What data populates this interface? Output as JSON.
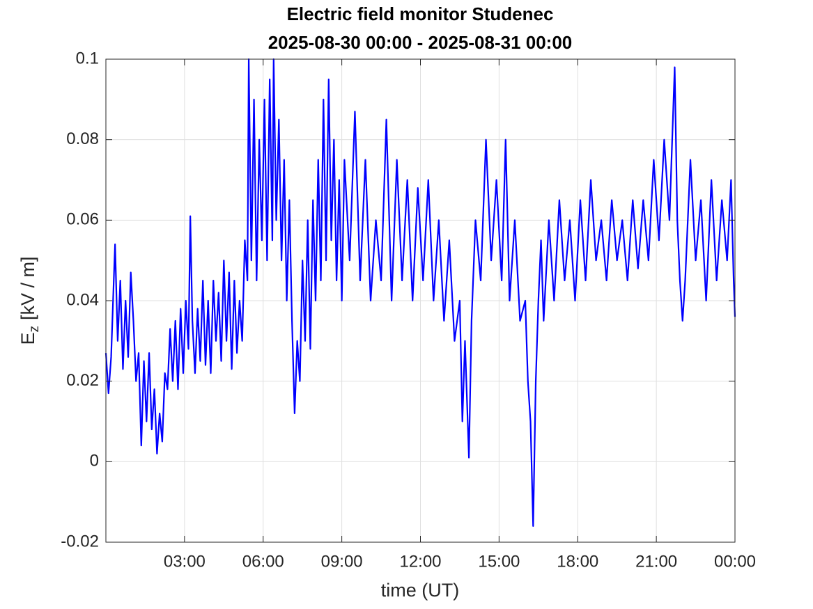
{
  "chart_data": {
    "type": "line",
    "title": "Electric field monitor Studenec",
    "subtitle": "2025-08-30 00:00 - 2025-08-31 00:00",
    "xlabel": "time (UT)",
    "ylabel": {
      "main": "E",
      "sub": "z",
      "unit": "[kV / m]"
    },
    "xlim": [
      0,
      24
    ],
    "xticks": [
      {
        "value": 3,
        "label": "03:00"
      },
      {
        "value": 6,
        "label": "06:00"
      },
      {
        "value": 9,
        "label": "09:00"
      },
      {
        "value": 12,
        "label": "12:00"
      },
      {
        "value": 15,
        "label": "15:00"
      },
      {
        "value": 18,
        "label": "18:00"
      },
      {
        "value": 21,
        "label": "21:00"
      },
      {
        "value": 24,
        "label": "00:00"
      }
    ],
    "ylim": [
      -0.02,
      0.1
    ],
    "yticks": [
      -0.02,
      0,
      0.02,
      0.04,
      0.06,
      0.08,
      0.1
    ],
    "grid": true,
    "series": [
      {
        "color": "#0000ff",
        "x": [
          0,
          0.1,
          0.2,
          0.3,
          0.35,
          0.45,
          0.55,
          0.65,
          0.75,
          0.85,
          0.95,
          1.05,
          1.15,
          1.25,
          1.35,
          1.45,
          1.55,
          1.65,
          1.75,
          1.85,
          1.95,
          2.05,
          2.15,
          2.25,
          2.35,
          2.45,
          2.55,
          2.65,
          2.75,
          2.85,
          2.95,
          3.05,
          3.15,
          3.22,
          3.3,
          3.4,
          3.5,
          3.6,
          3.7,
          3.8,
          3.9,
          4.0,
          4.1,
          4.2,
          4.3,
          4.4,
          4.5,
          4.6,
          4.7,
          4.8,
          4.9,
          5.0,
          5.1,
          5.2,
          5.3,
          5.4,
          5.45,
          5.55,
          5.65,
          5.75,
          5.85,
          5.95,
          6.05,
          6.15,
          6.25,
          6.35,
          6.4,
          6.5,
          6.6,
          6.7,
          6.8,
          6.9,
          7.0,
          7.1,
          7.2,
          7.3,
          7.4,
          7.5,
          7.6,
          7.7,
          7.8,
          7.9,
          8.0,
          8.1,
          8.2,
          8.3,
          8.4,
          8.5,
          8.6,
          8.7,
          8.8,
          8.9,
          9.0,
          9.1,
          9.3,
          9.5,
          9.7,
          9.9,
          10.1,
          10.3,
          10.5,
          10.7,
          10.9,
          11.1,
          11.3,
          11.5,
          11.7,
          11.9,
          12.1,
          12.3,
          12.5,
          12.7,
          12.9,
          13.1,
          13.3,
          13.5,
          13.6,
          13.7,
          13.85,
          13.95,
          14.1,
          14.3,
          14.5,
          14.7,
          14.9,
          15.1,
          15.25,
          15.4,
          15.6,
          15.8,
          16.0,
          16.1,
          16.2,
          16.3,
          16.4,
          16.5,
          16.6,
          16.7,
          16.9,
          17.1,
          17.3,
          17.5,
          17.7,
          17.9,
          18.1,
          18.3,
          18.5,
          18.7,
          18.9,
          19.1,
          19.3,
          19.5,
          19.7,
          19.9,
          20.1,
          20.3,
          20.5,
          20.7,
          20.9,
          21.1,
          21.3,
          21.5,
          21.7,
          21.8,
          21.9,
          22.0,
          22.1,
          22.3,
          22.5,
          22.7,
          22.9,
          23.1,
          23.3,
          23.5,
          23.7,
          23.85,
          23.95,
          24
        ],
        "values": [
          0.027,
          0.017,
          0.026,
          0.045,
          0.054,
          0.03,
          0.045,
          0.023,
          0.04,
          0.026,
          0.047,
          0.035,
          0.02,
          0.027,
          0.004,
          0.025,
          0.01,
          0.027,
          0.008,
          0.018,
          0.002,
          0.012,
          0.005,
          0.022,
          0.018,
          0.033,
          0.02,
          0.035,
          0.018,
          0.038,
          0.022,
          0.04,
          0.028,
          0.061,
          0.035,
          0.022,
          0.038,
          0.025,
          0.045,
          0.024,
          0.04,
          0.022,
          0.045,
          0.03,
          0.042,
          0.025,
          0.05,
          0.03,
          0.047,
          0.023,
          0.045,
          0.027,
          0.04,
          0.03,
          0.055,
          0.045,
          0.1,
          0.05,
          0.09,
          0.045,
          0.08,
          0.055,
          0.09,
          0.05,
          0.095,
          0.055,
          0.1,
          0.06,
          0.085,
          0.05,
          0.075,
          0.04,
          0.065,
          0.035,
          0.012,
          0.03,
          0.02,
          0.05,
          0.03,
          0.06,
          0.028,
          0.065,
          0.04,
          0.075,
          0.045,
          0.09,
          0.05,
          0.095,
          0.055,
          0.08,
          0.045,
          0.07,
          0.04,
          0.075,
          0.05,
          0.087,
          0.045,
          0.075,
          0.04,
          0.06,
          0.045,
          0.085,
          0.04,
          0.075,
          0.045,
          0.07,
          0.04,
          0.068,
          0.045,
          0.07,
          0.04,
          0.06,
          0.035,
          0.055,
          0.03,
          0.04,
          0.01,
          0.03,
          0.001,
          0.035,
          0.06,
          0.045,
          0.08,
          0.05,
          0.07,
          0.045,
          0.08,
          0.04,
          0.06,
          0.035,
          0.04,
          0.02,
          0.01,
          -0.016,
          0.02,
          0.04,
          0.055,
          0.035,
          0.06,
          0.04,
          0.065,
          0.045,
          0.06,
          0.04,
          0.065,
          0.045,
          0.07,
          0.05,
          0.06,
          0.045,
          0.065,
          0.05,
          0.06,
          0.045,
          0.065,
          0.048,
          0.065,
          0.05,
          0.075,
          0.055,
          0.08,
          0.06,
          0.098,
          0.06,
          0.045,
          0.035,
          0.045,
          0.075,
          0.05,
          0.065,
          0.04,
          0.07,
          0.045,
          0.065,
          0.05,
          0.07,
          0.045,
          0.036
        ]
      }
    ]
  }
}
